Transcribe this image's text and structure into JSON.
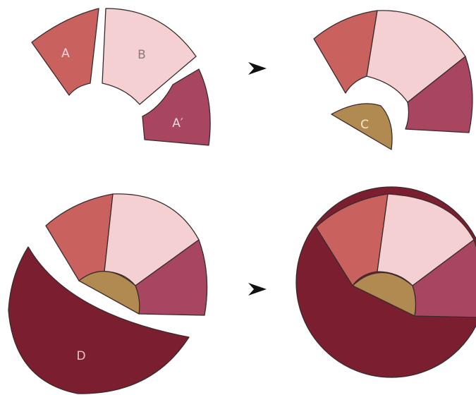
{
  "labels": {
    "a": "A",
    "b": "B",
    "a_prime": "A′",
    "c": "C",
    "d": "D"
  }
}
